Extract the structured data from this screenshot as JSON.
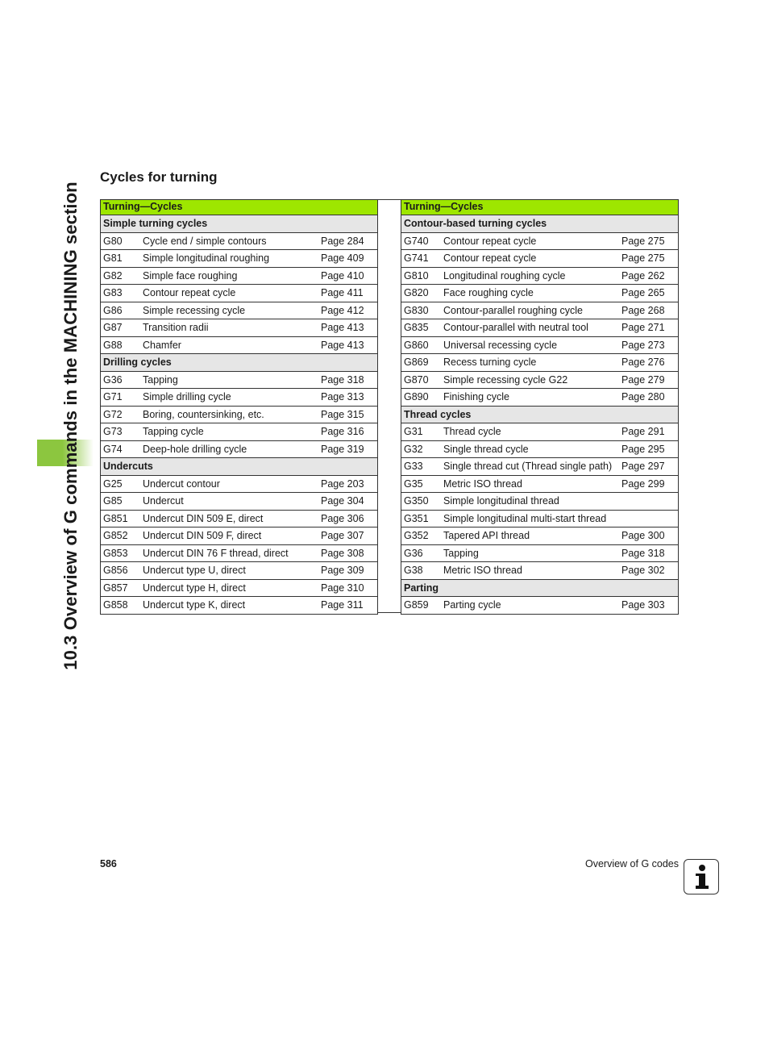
{
  "side_title": "10.3 Overview of G commands in the MACHINING section",
  "heading": "Cycles for turning",
  "left_table": {
    "header": "Turning—Cycles",
    "sections": [
      {
        "title": "Simple turning cycles",
        "rows": [
          [
            "G80",
            "Cycle end / simple contours",
            "Page 284"
          ],
          [
            "G81",
            "Simple longitudinal roughing",
            "Page 409"
          ],
          [
            "G82",
            "Simple face roughing",
            "Page 410"
          ],
          [
            "G83",
            "Contour repeat cycle",
            "Page 411"
          ],
          [
            "G86",
            "Simple recessing cycle",
            "Page 412"
          ],
          [
            "G87",
            "Transition radii",
            "Page 413"
          ],
          [
            "G88",
            "Chamfer",
            "Page 413"
          ]
        ]
      },
      {
        "title": "Drilling cycles",
        "rows": [
          [
            "G36",
            "Tapping",
            "Page 318"
          ],
          [
            "G71",
            "Simple drilling cycle",
            "Page 313"
          ],
          [
            "G72",
            "Boring, countersinking, etc.",
            "Page 315"
          ],
          [
            "G73",
            "Tapping cycle",
            "Page 316"
          ],
          [
            "G74",
            "Deep-hole drilling cycle",
            "Page 319"
          ]
        ]
      },
      {
        "title": "Undercuts",
        "rows": [
          [
            "G25",
            "Undercut contour",
            "Page 203"
          ],
          [
            "G85",
            "Undercut",
            "Page 304"
          ],
          [
            "G851",
            "Undercut DIN 509 E, direct",
            "Page 306"
          ],
          [
            "G852",
            "Undercut DIN 509 F, direct",
            "Page 307"
          ],
          [
            "G853",
            "Undercut DIN 76 F thread, direct",
            "Page 308"
          ],
          [
            "G856",
            "Undercut type U, direct",
            "Page 309"
          ],
          [
            "G857",
            "Undercut type H, direct",
            "Page 310"
          ],
          [
            "G858",
            "Undercut type K, direct",
            "Page 311"
          ]
        ]
      }
    ]
  },
  "right_table": {
    "header": "Turning—Cycles",
    "sections": [
      {
        "title": "Contour-based turning cycles",
        "rows": [
          [
            "G740",
            "Contour repeat cycle",
            "Page 275"
          ],
          [
            "G741",
            "Contour repeat cycle",
            "Page 275"
          ],
          [
            "G810",
            "Longitudinal roughing cycle",
            "Page 262"
          ],
          [
            "G820",
            "Face roughing cycle",
            "Page 265"
          ],
          [
            "G830",
            "Contour-parallel roughing cycle",
            "Page 268"
          ],
          [
            "G835",
            "Contour-parallel with neutral tool",
            "Page 271"
          ],
          [
            "G860",
            "Universal recessing cycle",
            "Page 273"
          ],
          [
            "G869",
            "Recess turning cycle",
            "Page 276"
          ],
          [
            "G870",
            "Simple recessing cycle G22",
            "Page 279"
          ],
          [
            "G890",
            "Finishing cycle",
            "Page 280"
          ]
        ]
      },
      {
        "title": "Thread cycles",
        "rows": [
          [
            "G31",
            "Thread cycle",
            "Page 291"
          ],
          [
            "G32",
            "Single thread cycle",
            "Page 295"
          ],
          [
            "G33",
            "Single thread cut (Thread single path)",
            "Page 297"
          ],
          [
            "G35",
            "Metric ISO thread",
            "Page 299"
          ],
          [
            "G350",
            "Simple longitudinal thread",
            ""
          ],
          [
            "G351",
            "Simple longitudinal multi-start thread",
            ""
          ],
          [
            "G352",
            "Tapered API thread",
            "Page 300"
          ],
          [
            "G36",
            "Tapping",
            "Page 318"
          ],
          [
            "G38",
            "Metric ISO thread",
            "Page 302"
          ]
        ]
      },
      {
        "title": "Parting",
        "rows": [
          [
            "G859",
            "Parting cycle",
            "Page 303"
          ]
        ]
      }
    ]
  },
  "footer": {
    "page_number": "586",
    "title": "Overview of G codes",
    "icon": "info-icon"
  },
  "colors": {
    "header_green": "#9ee600",
    "side_tab_green": "#8cc63f",
    "subheader_grey": "#e6e6e6"
  }
}
